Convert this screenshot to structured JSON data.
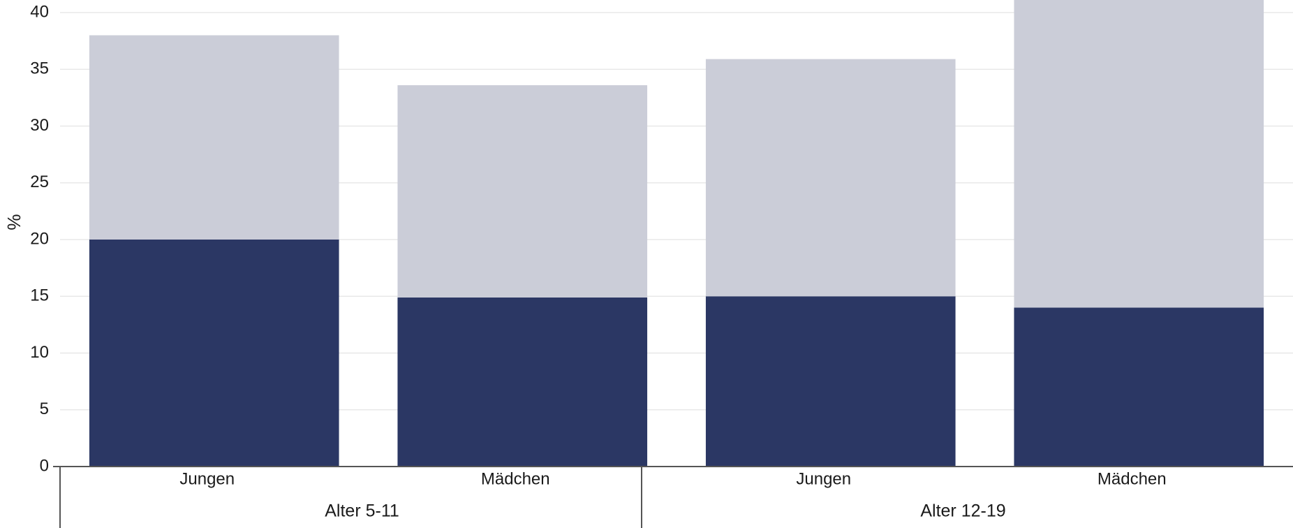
{
  "chart_data": {
    "type": "bar",
    "stacked": true,
    "ylabel": "%",
    "ylim": [
      0,
      40
    ],
    "yticks": [
      0,
      5,
      10,
      15,
      20,
      25,
      30,
      35,
      40
    ],
    "grid": true,
    "groups": [
      {
        "label": "Alter 5-11",
        "categories": [
          "Jungen",
          "Mädchen"
        ]
      },
      {
        "label": "Alter 12-19",
        "categories": [
          "Jungen",
          "Mädchen"
        ]
      }
    ],
    "categories": [
      "Jungen",
      "Mädchen",
      "Jungen",
      "Mädchen"
    ],
    "series": [
      {
        "values": [
          20,
          14.9,
          15,
          14
        ],
        "color": "#2b3764"
      },
      {
        "values": [
          18,
          18.7,
          20.9,
          28.5
        ],
        "color": "#cbcdd8"
      }
    ],
    "colors": {
      "grid": "#e8e8e8",
      "axis": "#555555",
      "text": "#1a1a1a"
    }
  }
}
